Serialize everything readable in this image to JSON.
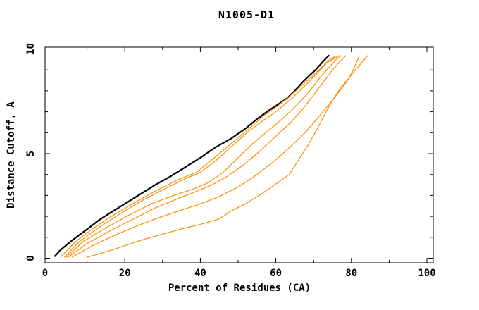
{
  "title": "N1005-D1",
  "chart_data": {
    "type": "line",
    "title": "N1005-D1",
    "xlabel": "Percent of Residues (CA)",
    "ylabel": "Distance Cutoff, A",
    "xlim": [
      0,
      100
    ],
    "ylim": [
      0,
      10
    ],
    "x_major_ticks": [
      0,
      20,
      40,
      60,
      80,
      100
    ],
    "x_minor_ticks": [
      10,
      30,
      50,
      70,
      90
    ],
    "y_major_ticks": [
      0,
      5,
      10
    ],
    "y_minor_ticks": [
      1,
      2,
      3,
      4,
      6,
      7,
      8,
      9
    ],
    "grid": false,
    "legend_position": "none",
    "frame": "box-with-inward-ticks",
    "colors": {
      "target_curve": "#000000",
      "model_curves": "#ff8c00",
      "axis": "#000000",
      "background": "#ffffff"
    },
    "series": [
      {
        "name": "target-curve",
        "color": "#000000",
        "width": 2.2,
        "points": [
          [
            1.5,
            0.1
          ],
          [
            3,
            0.4
          ],
          [
            6,
            0.85
          ],
          [
            9,
            1.25
          ],
          [
            10.5,
            1.45
          ],
          [
            13,
            1.8
          ],
          [
            16,
            2.15
          ],
          [
            20,
            2.6
          ],
          [
            24,
            3.05
          ],
          [
            28,
            3.5
          ],
          [
            32,
            3.9
          ],
          [
            36,
            4.35
          ],
          [
            40,
            4.8
          ],
          [
            44,
            5.3
          ],
          [
            48,
            5.7
          ],
          [
            52,
            6.2
          ],
          [
            55,
            6.65
          ],
          [
            58,
            7.05
          ],
          [
            61,
            7.4
          ],
          [
            63,
            7.65
          ],
          [
            65,
            8.0
          ],
          [
            67,
            8.4
          ],
          [
            69,
            8.75
          ],
          [
            70.5,
            9.0
          ],
          [
            72,
            9.3
          ],
          [
            73,
            9.5
          ],
          [
            74,
            9.68
          ]
        ]
      },
      {
        "name": "model-curve-1",
        "color": "#ff8c00",
        "width": 1.2,
        "points": [
          [
            3,
            0.05
          ],
          [
            7,
            0.8
          ],
          [
            11,
            1.35
          ],
          [
            16,
            1.95
          ],
          [
            22,
            2.6
          ],
          [
            28,
            3.2
          ],
          [
            34,
            3.75
          ],
          [
            39,
            4.1
          ],
          [
            44,
            4.85
          ],
          [
            48,
            5.45
          ],
          [
            52,
            6.05
          ],
          [
            57,
            6.85
          ],
          [
            61,
            7.35
          ],
          [
            65,
            7.95
          ],
          [
            69,
            8.6
          ],
          [
            72,
            9.1
          ],
          [
            74,
            9.45
          ],
          [
            75.7,
            9.65
          ]
        ]
      },
      {
        "name": "model-curve-2",
        "color": "#ff8c00",
        "width": 1.2,
        "points": [
          [
            4,
            0.05
          ],
          [
            8,
            0.8
          ],
          [
            13,
            1.45
          ],
          [
            19,
            2.15
          ],
          [
            25,
            2.8
          ],
          [
            31,
            3.35
          ],
          [
            36,
            3.8
          ],
          [
            40,
            4.1
          ],
          [
            44,
            4.65
          ],
          [
            48,
            5.3
          ],
          [
            53,
            6.1
          ],
          [
            57,
            6.62
          ],
          [
            60,
            7.0
          ],
          [
            64,
            7.6
          ],
          [
            68,
            8.3
          ],
          [
            71,
            8.85
          ],
          [
            73.5,
            9.35
          ],
          [
            76.8,
            9.68
          ]
        ]
      },
      {
        "name": "model-curve-3",
        "color": "#ff8c00",
        "width": 1.2,
        "points": [
          [
            4.5,
            0.05
          ],
          [
            9,
            0.8
          ],
          [
            15,
            1.45
          ],
          [
            21,
            2.05
          ],
          [
            27,
            2.6
          ],
          [
            33,
            3.0
          ],
          [
            38,
            3.3
          ],
          [
            42,
            3.6
          ],
          [
            46,
            4.1
          ],
          [
            50,
            4.8
          ],
          [
            54,
            5.5
          ],
          [
            58,
            6.1
          ],
          [
            62,
            6.7
          ],
          [
            66,
            7.4
          ],
          [
            69,
            8.0
          ],
          [
            72,
            8.7
          ],
          [
            74,
            9.1
          ],
          [
            76,
            9.5
          ],
          [
            77.3,
            9.68
          ]
        ]
      },
      {
        "name": "model-curve-4",
        "color": "#ff8c00",
        "width": 1.2,
        "points": [
          [
            5,
            0.05
          ],
          [
            10,
            0.7
          ],
          [
            16,
            1.3
          ],
          [
            22,
            1.85
          ],
          [
            28,
            2.4
          ],
          [
            34,
            2.85
          ],
          [
            39,
            3.2
          ],
          [
            43,
            3.5
          ],
          [
            47,
            3.9
          ],
          [
            51,
            4.4
          ],
          [
            55,
            5.0
          ],
          [
            58,
            5.5
          ],
          [
            61,
            6.0
          ],
          [
            64,
            6.5
          ],
          [
            67,
            7.1
          ],
          [
            70,
            7.8
          ],
          [
            72.5,
            8.4
          ],
          [
            75,
            9.0
          ],
          [
            77,
            9.4
          ],
          [
            78.5,
            9.68
          ]
        ]
      },
      {
        "name": "model-curve-5",
        "color": "#ff8c00",
        "width": 1.2,
        "points": [
          [
            6,
            0.05
          ],
          [
            12,
            0.65
          ],
          [
            18,
            1.15
          ],
          [
            24,
            1.6
          ],
          [
            30,
            2.0
          ],
          [
            35,
            2.3
          ],
          [
            40,
            2.6
          ],
          [
            45,
            2.95
          ],
          [
            50,
            3.4
          ],
          [
            55,
            4.0
          ],
          [
            60,
            4.7
          ],
          [
            64,
            5.35
          ],
          [
            68,
            6.05
          ],
          [
            72,
            6.9
          ],
          [
            75,
            7.55
          ],
          [
            78,
            8.25
          ],
          [
            79.5,
            8.64
          ],
          [
            81,
            9.0
          ],
          [
            83,
            9.4
          ],
          [
            84.3,
            9.68
          ]
        ]
      },
      {
        "name": "model-curve-6",
        "color": "#ff8c00",
        "width": 1.2,
        "points": [
          [
            10,
            0.05
          ],
          [
            15,
            0.3
          ],
          [
            20,
            0.6
          ],
          [
            25,
            0.9
          ],
          [
            30,
            1.15
          ],
          [
            35,
            1.4
          ],
          [
            40,
            1.62
          ],
          [
            45,
            1.88
          ],
          [
            48,
            2.25
          ],
          [
            52,
            2.6
          ],
          [
            56,
            3.05
          ],
          [
            60,
            3.55
          ],
          [
            63.5,
            4.0
          ],
          [
            66,
            4.7
          ],
          [
            68.5,
            5.4
          ],
          [
            71,
            6.2
          ],
          [
            73,
            6.9
          ],
          [
            75,
            7.55
          ],
          [
            77,
            8.1
          ],
          [
            79.5,
            8.64
          ],
          [
            80.7,
            9.1
          ],
          [
            81.6,
            9.45
          ],
          [
            82.1,
            9.68
          ]
        ]
      }
    ]
  }
}
